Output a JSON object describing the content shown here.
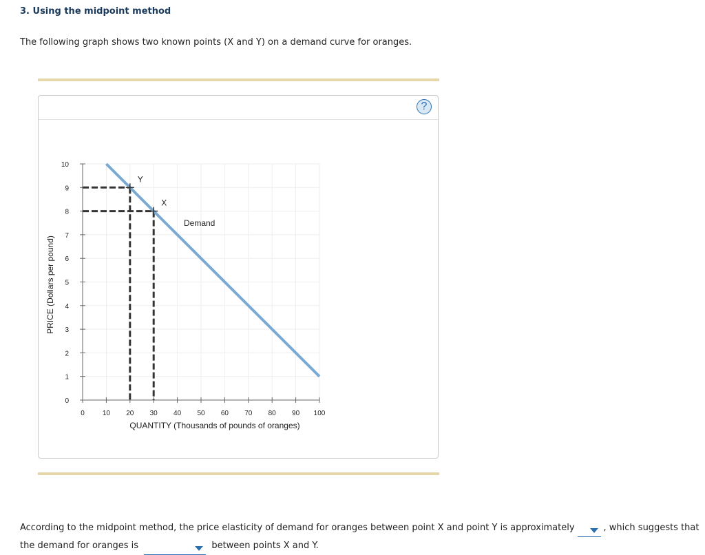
{
  "heading": "3. Using the midpoint method",
  "intro": "The following graph shows two known points (X and Y) on a demand curve for oranges.",
  "help_label": "?",
  "question": {
    "part1": "According to the midpoint method, the price elasticity of demand for oranges between point X and point Y is approximately",
    "part2": ", which suggests that the demand for oranges is",
    "part3": "between points X and Y.",
    "dropdown1_value": "",
    "dropdown2_value": ""
  },
  "colors": {
    "curve": "#7aaad3",
    "guide": "#333333",
    "accent": "#2a6fb0",
    "rule": "#e6d7a8"
  },
  "chart_data": {
    "type": "line",
    "xlabel": "QUANTITY (Thousands of pounds of oranges)",
    "ylabel": "PRICE (Dollars per pound)",
    "xlim": [
      0,
      100
    ],
    "ylim": [
      0,
      10
    ],
    "xticks": [
      0,
      10,
      20,
      30,
      40,
      50,
      60,
      70,
      80,
      90,
      100
    ],
    "yticks": [
      0,
      1,
      2,
      3,
      4,
      5,
      6,
      7,
      8,
      9,
      10
    ],
    "grid": true,
    "series": [
      {
        "name": "Demand",
        "points": [
          [
            10,
            10
          ],
          [
            100,
            1
          ]
        ]
      }
    ],
    "points": [
      {
        "label": "Y",
        "x": 20,
        "y": 9
      },
      {
        "label": "X",
        "x": 30,
        "y": 8
      }
    ]
  }
}
